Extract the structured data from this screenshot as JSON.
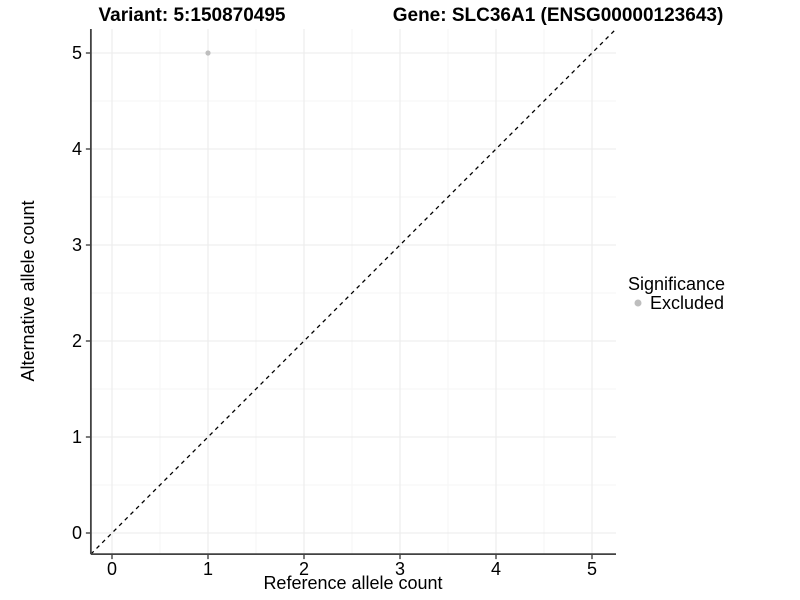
{
  "titles": {
    "variant": "Variant: 5:150870495",
    "gene": "Gene: SLC36A1 (ENSG00000123643)"
  },
  "chart_data": {
    "type": "scatter",
    "xlabel": "Reference allele count",
    "ylabel": "Alternative allele count",
    "xlim": [
      -0.22,
      5.25
    ],
    "ylim": [
      -0.22,
      5.25
    ],
    "x_ticks": [
      "0",
      "1",
      "2",
      "3",
      "4",
      "5"
    ],
    "y_ticks": [
      "0",
      "1",
      "2",
      "3",
      "4",
      "5"
    ],
    "grid": "major and minor gridlines on white background",
    "series": [
      {
        "name": "Excluded",
        "color": "#bebebe",
        "points": [
          {
            "x": 1,
            "y": 5
          }
        ]
      }
    ],
    "reference_line": {
      "type": "identity",
      "intercept": 0,
      "slope": 1,
      "style": "dashed",
      "color": "#000000"
    },
    "legend": {
      "title": "Significance",
      "position": "right",
      "entries": [
        {
          "label": "Excluded",
          "color": "#bebebe"
        }
      ]
    }
  },
  "colors": {
    "background": "#ffffff",
    "grid_major": "#ebebeb",
    "grid_minor": "#f5f5f5",
    "axis_line": "#424242",
    "point": "#bebebe",
    "text": "#000000"
  }
}
